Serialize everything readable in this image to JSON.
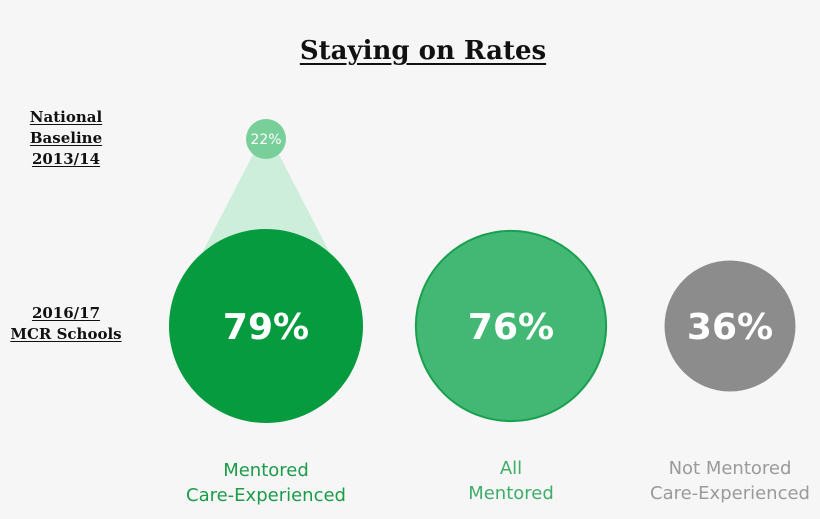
{
  "chart_data": {
    "type": "bubble",
    "title": "Staying on Rates",
    "row_labels": {
      "baseline": [
        "National",
        "Baseline",
        "2013/14"
      ],
      "current": [
        "2016/17",
        "MCR Schools"
      ]
    },
    "categories": [
      {
        "name_lines": [
          "Mentored",
          "Care-Experienced"
        ],
        "value": 79,
        "value_label": "79%",
        "color": "#079b3f",
        "label_color": "#1a9c48",
        "baseline": {
          "value": 22,
          "value_label": "22%",
          "color": "#79cf99",
          "cone_color": "#cdeedb"
        }
      },
      {
        "name_lines": [
          "All",
          "Mentored"
        ],
        "value": 76,
        "value_label": "76%",
        "color": "#42b874",
        "stroke": "#19a04e",
        "label_color": "#3fae6a"
      },
      {
        "name_lines": [
          "Not Mentored",
          "Care-Experienced"
        ],
        "value": 36,
        "value_label": "36%",
        "color": "#8c8c8c",
        "label_color": "#9a9a9a"
      }
    ]
  }
}
